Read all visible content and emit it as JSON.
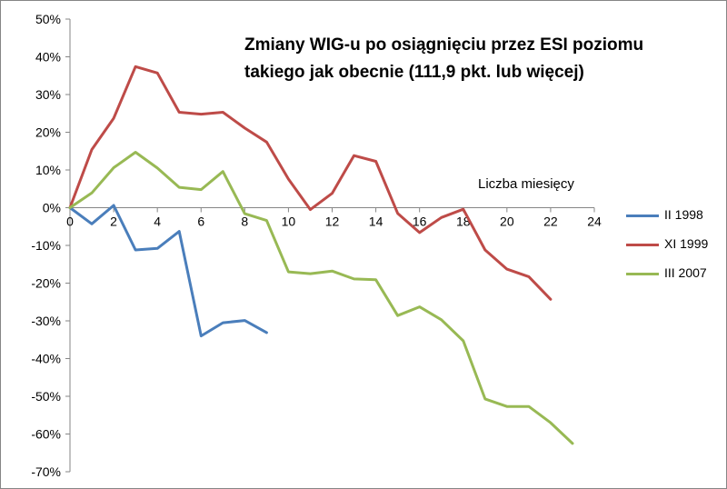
{
  "chart_data": {
    "type": "line",
    "title_line1": "Zmiany WIG-u po osiągnięciu przez ESI poziomu",
    "title_line2": "takiego jak obecnie (111,9 pkt. lub więcej)",
    "xlabel": "Liczba miesięcy",
    "ylabel": "",
    "xlim": [
      0,
      24
    ],
    "ylim": [
      -70,
      50
    ],
    "x_ticks": [
      0,
      2,
      4,
      6,
      8,
      10,
      12,
      14,
      16,
      18,
      20,
      22,
      24
    ],
    "y_ticks": [
      50,
      40,
      30,
      20,
      10,
      0,
      -10,
      -20,
      -30,
      -40,
      -50,
      -60,
      -70
    ],
    "y_tick_labels": [
      "50%",
      "40%",
      "30%",
      "20%",
      "10%",
      "0%",
      "-10%",
      "-20%",
      "-30%",
      "-40%",
      "-50%",
      "-60%",
      "-70%"
    ],
    "grid": false,
    "legend_position": "right",
    "series": [
      {
        "name": "II 1998",
        "color": "#4a7ebb",
        "x": [
          0,
          1,
          2,
          3,
          4,
          5,
          6,
          7,
          8,
          9
        ],
        "values": [
          0,
          -4.3,
          0.6,
          -11.2,
          -10.8,
          -6.3,
          -34.0,
          -30.5,
          -29.9,
          -33.1
        ]
      },
      {
        "name": "XI 1999",
        "color": "#be4b48",
        "x": [
          0,
          1,
          2,
          3,
          4,
          5,
          6,
          7,
          8,
          9,
          10,
          11,
          12,
          13,
          14,
          15,
          16,
          17,
          18,
          19,
          20,
          21,
          22
        ],
        "values": [
          0,
          15.4,
          23.7,
          37.4,
          35.7,
          25.3,
          24.8,
          25.3,
          21.1,
          17.4,
          7.6,
          -0.5,
          3.8,
          13.8,
          12.3,
          -1.5,
          -6.6,
          -2.6,
          -0.4,
          -11.2,
          -16.3,
          -18.3,
          -24.3
        ]
      },
      {
        "name": "III 2007",
        "color": "#98b954",
        "x": [
          0,
          1,
          2,
          3,
          4,
          5,
          6,
          7,
          8,
          9,
          10,
          11,
          12,
          13,
          14,
          15,
          16,
          17,
          18,
          19,
          20,
          21,
          22,
          23
        ],
        "values": [
          0,
          3.9,
          10.6,
          14.7,
          10.5,
          5.4,
          4.8,
          9.6,
          -1.6,
          -3.4,
          -17.0,
          -17.5,
          -16.8,
          -18.9,
          -19.1,
          -28.6,
          -26.3,
          -29.7,
          -35.3,
          -50.7,
          -52.7,
          -52.7,
          -57.0,
          -62.5
        ]
      }
    ]
  }
}
